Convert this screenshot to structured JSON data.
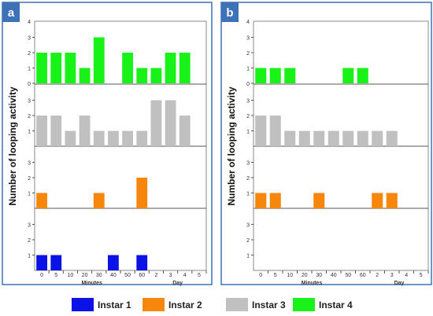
{
  "figure": {
    "ylabel": "Number of looping activity",
    "legend": [
      {
        "name": "Instar 1",
        "color": "#0a12e6"
      },
      {
        "name": "Instar 2",
        "color": "#f7860c"
      },
      {
        "name": "Instar 3",
        "color": "#c0c0c0"
      },
      {
        "name": "Instar 4",
        "color": "#19f219"
      }
    ],
    "panel_border_color": "#3d72b8",
    "badge_color": "#3d72b8"
  },
  "chart_data": [
    {
      "type": "bar",
      "panel_label": "a",
      "xlabel_minutes": "Minutes",
      "xlabel_day": "Day",
      "categories": [
        "0",
        "5",
        "10",
        "20",
        "30",
        "40",
        "50",
        "60",
        "2",
        "3",
        "4",
        "5"
      ],
      "ylim": [
        0,
        4
      ],
      "yticks": [
        "0",
        "1",
        "2",
        "3"
      ],
      "ytick_top": "4",
      "series": [
        {
          "name": "Instar 4",
          "values": [
            2,
            2,
            2,
            1,
            3,
            0,
            2,
            1,
            1,
            2,
            2,
            0
          ]
        },
        {
          "name": "Instar 3",
          "values": [
            2,
            2,
            1,
            2,
            1,
            1,
            1,
            1,
            3,
            3,
            2,
            0
          ]
        },
        {
          "name": "Instar 2",
          "values": [
            1,
            0,
            0,
            0,
            1,
            0,
            0,
            2,
            0,
            0,
            0,
            0
          ]
        },
        {
          "name": "Instar 1",
          "values": [
            1,
            1,
            0,
            0,
            0,
            1,
            0,
            1,
            0,
            0,
            0,
            0
          ]
        }
      ]
    },
    {
      "type": "bar",
      "panel_label": "b",
      "xlabel_minutes": "Minutes",
      "xlabel_day": "Day",
      "categories": [
        "0",
        "5",
        "10",
        "20",
        "30",
        "40",
        "50",
        "60",
        "2",
        "3",
        "4",
        "5"
      ],
      "ylim": [
        0,
        4
      ],
      "yticks": [
        "0",
        "1",
        "2",
        "3"
      ],
      "ytick_top": "4",
      "series": [
        {
          "name": "Instar 4",
          "values": [
            1,
            1,
            1,
            0,
            0,
            0,
            1,
            1,
            0,
            0,
            0,
            0
          ]
        },
        {
          "name": "Instar 3",
          "values": [
            2,
            2,
            1,
            1,
            1,
            1,
            1,
            1,
            1,
            1,
            0,
            0
          ]
        },
        {
          "name": "Instar 2",
          "values": [
            1,
            1,
            0,
            0,
            1,
            0,
            0,
            0,
            1,
            1,
            0,
            0
          ]
        },
        {
          "name": "Instar 1",
          "values": [
            0,
            0,
            0,
            0,
            0,
            0,
            0,
            0,
            0,
            0,
            0,
            0
          ]
        }
      ]
    }
  ]
}
